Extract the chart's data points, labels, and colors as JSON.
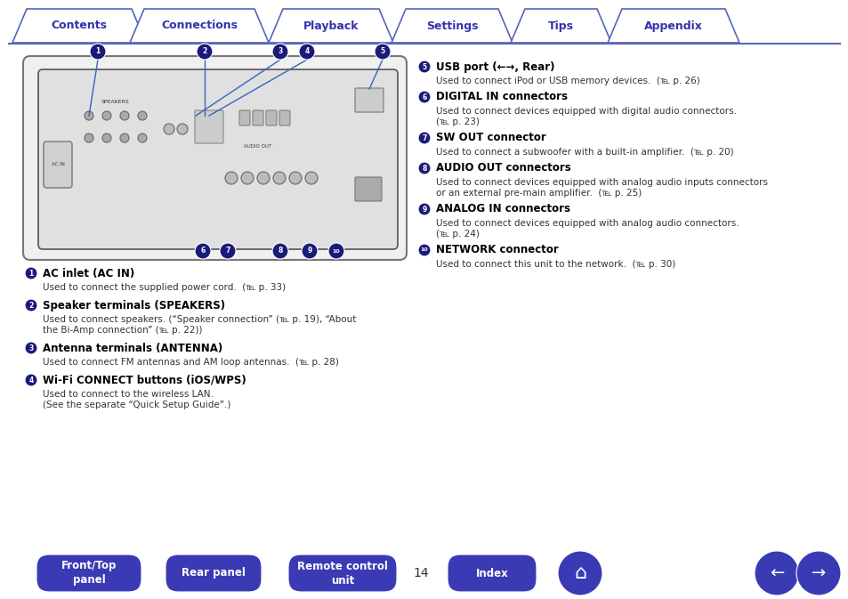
{
  "bg_color": "#ffffff",
  "tab_text_color": "#3333aa",
  "tab_border_color": "#5566bb",
  "tabs": [
    "Contents",
    "Connections",
    "Playback",
    "Settings",
    "Tips",
    "Appendix"
  ],
  "page_number": "14",
  "button_color": "#3a3ab5",
  "circle_color": "#1a1a7a",
  "left_col_items": [
    {
      "num": "1",
      "title": "AC inlet (AC IN)",
      "desc": "Used to connect the supplied power cord.  (℡ p. 33)"
    },
    {
      "num": "2",
      "title": "Speaker terminals (SPEAKERS)",
      "desc": "Used to connect speakers. (“Speaker connection” (℡ p. 19), “About\nthe Bi-Amp connection” (℡ p. 22))"
    },
    {
      "num": "3",
      "title": "Antenna terminals (ANTENNA)",
      "desc": "Used to connect FM antennas and AM loop antennas.  (℡ p. 28)"
    },
    {
      "num": "4",
      "title": "Wi-Fi CONNECT buttons (iOS/WPS)",
      "desc": "Used to connect to the wireless LAN.\n(See the separate “Quick Setup Guide”.)"
    }
  ],
  "right_col_items": [
    {
      "num": "5",
      "title": "USB port (←→, Rear)",
      "desc": "Used to connect iPod or USB memory devices.  (℡ p. 26)"
    },
    {
      "num": "6",
      "title": "DIGITAL IN connectors",
      "desc": "Used to connect devices equipped with digital audio connectors.\n(℡ p. 23)"
    },
    {
      "num": "7",
      "title": "SW OUT connector",
      "desc": "Used to connect a subwoofer with a built-in amplifier.  (℡ p. 20)"
    },
    {
      "num": "8",
      "title": "AUDIO OUT connectors",
      "desc": "Used to connect devices equipped with analog audio inputs connectors\nor an external pre-main amplifier.  (℡ p. 25)"
    },
    {
      "num": "9",
      "title": "ANALOG IN connectors",
      "desc": "Used to connect devices equipped with analog audio connectors.\n(℡ p. 24)"
    },
    {
      "num": "10",
      "title": "NETWORK connector",
      "desc": "Used to connect this unit to the network.  (℡ p. 30)"
    }
  ]
}
